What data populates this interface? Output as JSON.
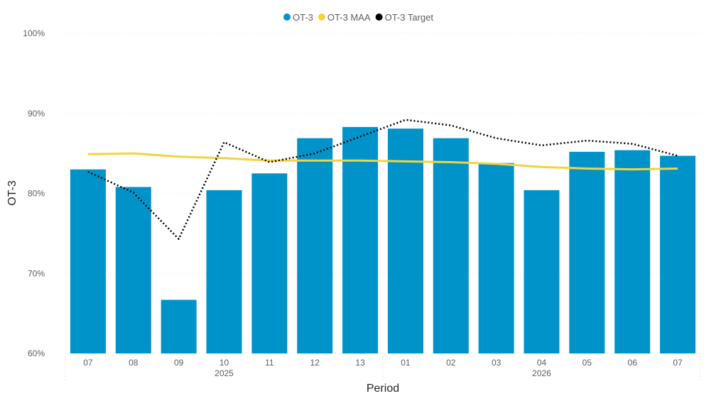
{
  "chart_data": {
    "type": "bar",
    "title": "",
    "xlabel": "Period",
    "ylabel": "OT-3",
    "ylim": [
      60,
      100
    ],
    "yticks": [
      "60%",
      "70%",
      "80%",
      "90%",
      "100%"
    ],
    "ytick_values": [
      60,
      70,
      80,
      90,
      100
    ],
    "grid": true,
    "legend_position": "top-center",
    "categories": [
      "07",
      "08",
      "09",
      "10",
      "11",
      "12",
      "13",
      "01",
      "02",
      "03",
      "04",
      "05",
      "06",
      "07"
    ],
    "year_groups": [
      {
        "label": "2025",
        "from": 0,
        "to": 6
      },
      {
        "label": "2026",
        "from": 7,
        "to": 13
      }
    ],
    "series": [
      {
        "name": "OT-3",
        "type": "bar",
        "color": "#0093c9",
        "values": [
          83.0,
          80.8,
          66.7,
          80.4,
          82.5,
          86.9,
          88.3,
          88.1,
          86.9,
          83.8,
          80.4,
          85.2,
          85.4,
          84.7
        ]
      },
      {
        "name": "OT-3 MAA",
        "type": "line",
        "color": "#f5d33f",
        "values": [
          84.9,
          85.0,
          84.6,
          84.4,
          84.1,
          84.1,
          84.1,
          84.0,
          83.9,
          83.7,
          83.3,
          83.1,
          83.0,
          83.1
        ]
      },
      {
        "name": "OT-3 Target",
        "type": "line",
        "style": "dotted",
        "color": "#000000",
        "values": [
          82.7,
          80.1,
          74.3,
          86.4,
          83.9,
          85.0,
          87.1,
          89.2,
          88.5,
          86.9,
          86.0,
          86.6,
          86.2,
          84.7
        ]
      }
    ]
  }
}
